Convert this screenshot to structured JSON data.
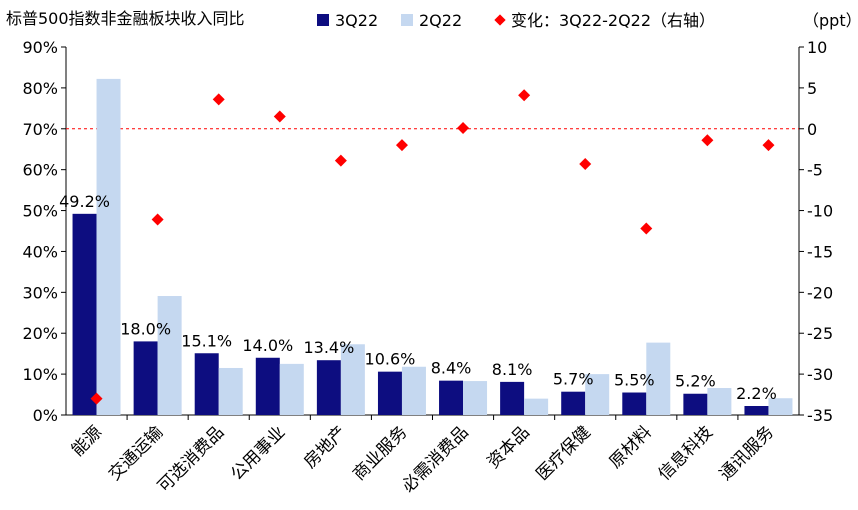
{
  "chart_data": {
    "type": "bar",
    "title": "标普500指数非金融板块收入同比",
    "right_axis_unit": "（ppt）",
    "categories": [
      "能源",
      "交通运输",
      "可选消费品",
      "公用事业",
      "房地产",
      "商业服务",
      "必需消费品",
      "资本品",
      "医疗保健",
      "原材料",
      "信息科技",
      "通讯服务"
    ],
    "series": [
      {
        "name": "3Q22",
        "color": "#0d0d80",
        "axis": "left",
        "values": [
          49.2,
          18.0,
          15.1,
          14.0,
          13.4,
          10.6,
          8.4,
          8.1,
          5.7,
          5.5,
          5.2,
          2.2
        ],
        "labels": [
          "49.2%",
          "18.0%",
          "15.1%",
          "14.0%",
          "13.4%",
          "10.6%",
          "8.4%",
          "8.1%",
          "5.7%",
          "5.5%",
          "5.2%",
          "2.2%"
        ]
      },
      {
        "name": "2Q22",
        "color": "#c5d8f0",
        "axis": "left",
        "values": [
          82.2,
          29.1,
          11.5,
          12.5,
          17.3,
          11.8,
          8.3,
          4.0,
          10.0,
          17.7,
          6.6,
          4.1
        ]
      },
      {
        "name": "变化：3Q22-2Q22（右轴）",
        "color": "#ff0000",
        "axis": "right",
        "marker": "diamond",
        "values": [
          -33.0,
          -11.1,
          3.6,
          1.5,
          -3.9,
          -2.0,
          0.1,
          4.1,
          -4.3,
          -12.2,
          -1.4,
          -2.0
        ]
      }
    ],
    "left_axis": {
      "min": 0,
      "max": 90,
      "step": 10,
      "ticks": [
        "0%",
        "10%",
        "20%",
        "30%",
        "40%",
        "50%",
        "60%",
        "70%",
        "80%",
        "90%"
      ]
    },
    "right_axis": {
      "min": -35,
      "max": 10,
      "step": 5,
      "ticks": [
        "-35",
        "-30",
        "-25",
        "-20",
        "-15",
        "-10",
        "-5",
        "0",
        "5",
        "10"
      ]
    },
    "reference_line": {
      "axis": "right",
      "value": 0,
      "style": "dashed",
      "color": "#ff0000"
    },
    "legend_position": "top"
  }
}
